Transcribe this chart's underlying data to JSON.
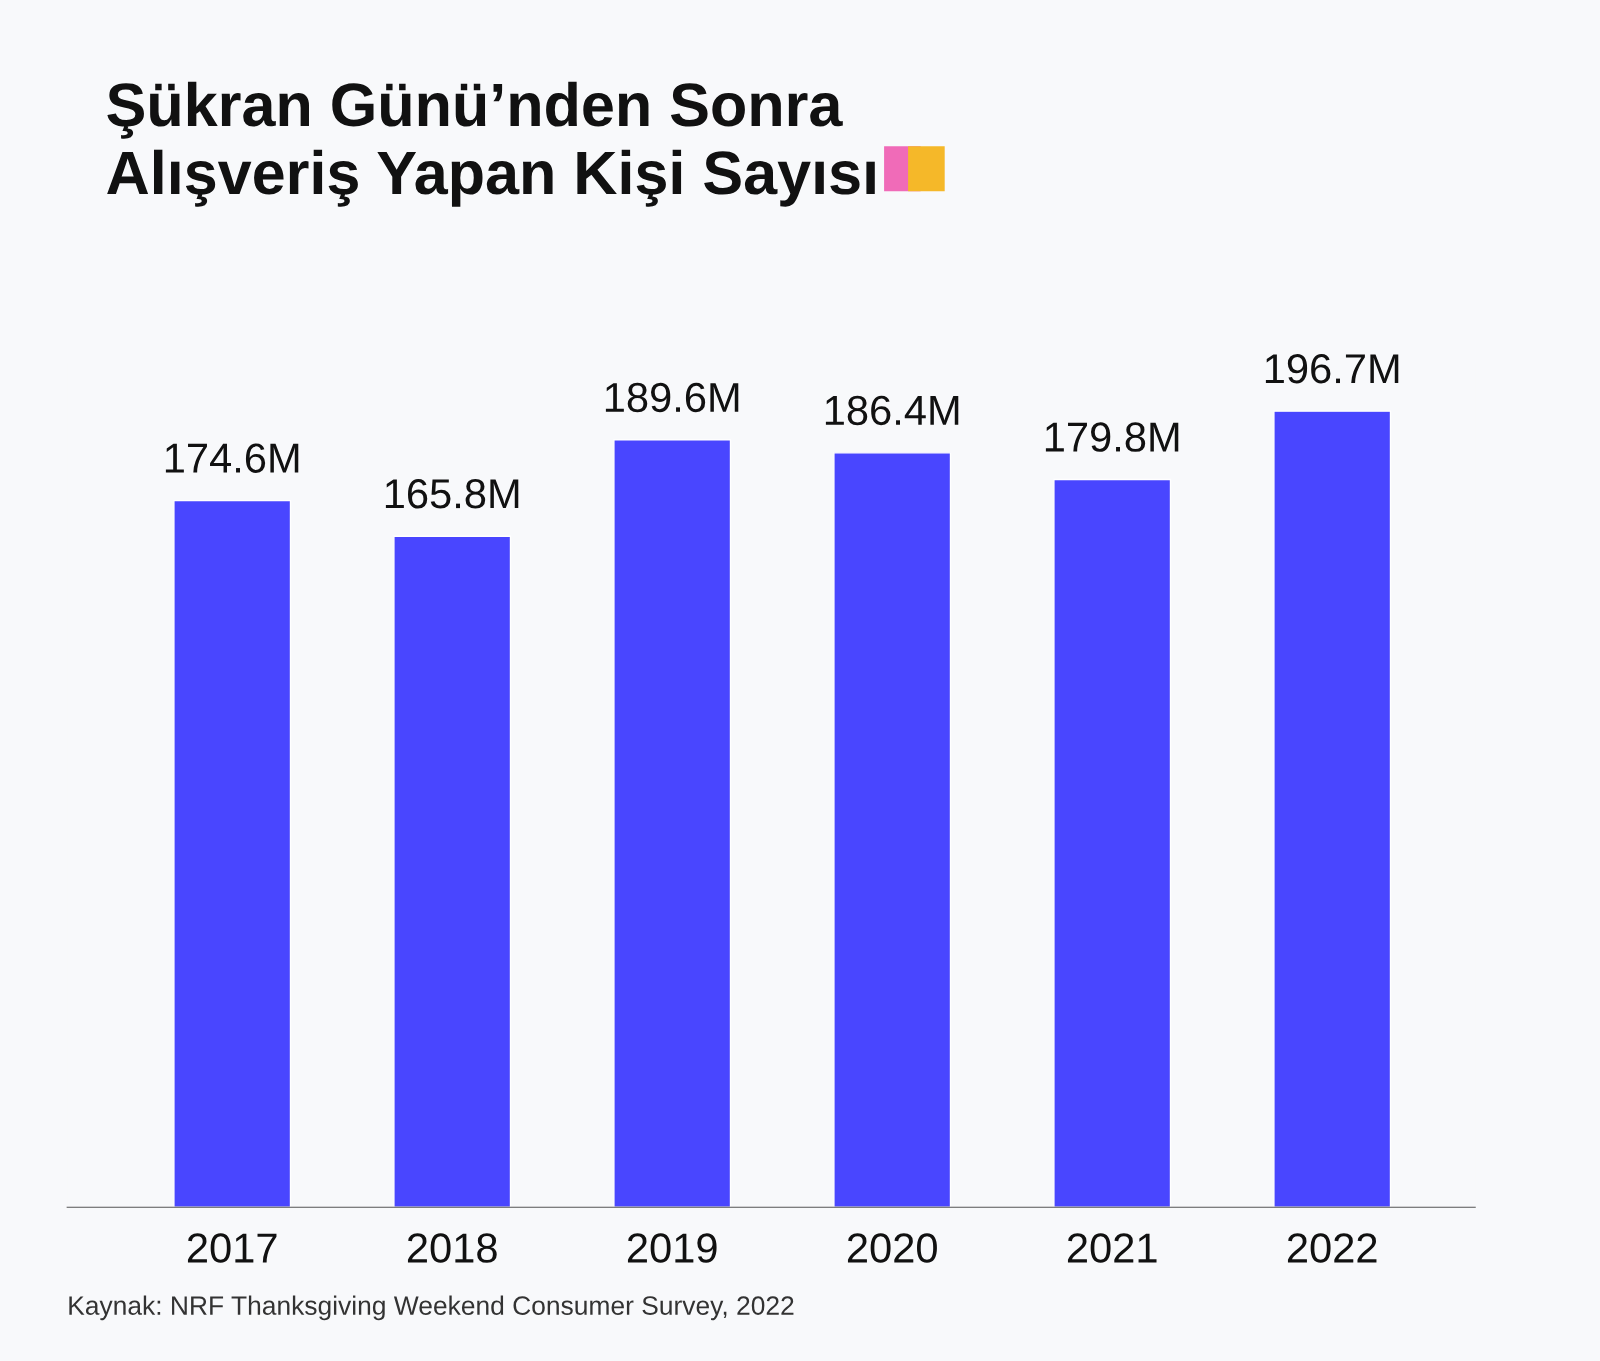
{
  "chart_data": {
    "type": "bar",
    "title": "Şükran Günü’nden Sonra\nAlışveriş Yapan Kişi Sayısı",
    "categories": [
      "2017",
      "2018",
      "2019",
      "2020",
      "2021",
      "2022"
    ],
    "values": [
      174.6,
      165.8,
      189.6,
      186.4,
      179.8,
      196.7
    ],
    "value_labels": [
      "174.6M",
      "165.8M",
      "189.6M",
      "186.4M",
      "179.8M",
      "196.7M"
    ],
    "color": "#4946ff",
    "grid": false,
    "legend": false,
    "annotations": [
      "Kaynak: NRF Thanksgiving Weekend Consumer Survey, 2022"
    ]
  }
}
